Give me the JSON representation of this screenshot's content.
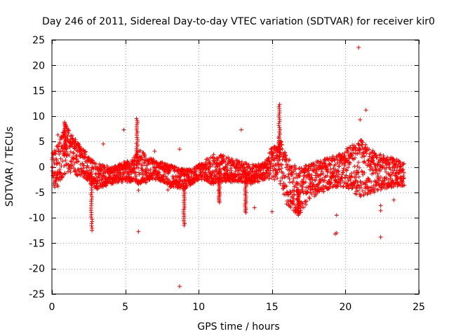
{
  "chart_data": {
    "type": "scatter",
    "title": "Day 246 of 2011, Sidereal Day-to-day VTEC variation (SDTVAR) for receiver kir0",
    "xlabel": "GPS time / hours",
    "ylabel": "SDTVAR / TECUs",
    "xlim": [
      0,
      25
    ],
    "ylim": [
      -25,
      25
    ],
    "xticks": [
      0,
      5,
      10,
      15,
      20,
      25
    ],
    "xtick_labels": [
      "0",
      "5",
      "10",
      "15",
      "20",
      "25"
    ],
    "yticks": [
      25,
      20,
      15,
      10,
      5,
      0,
      -5,
      -10,
      -15,
      -20,
      -25
    ],
    "ytick_labels": [
      "25",
      "20",
      "15",
      "10",
      "5",
      "0",
      "-5",
      "-10",
      "-15",
      "-20",
      "-25"
    ],
    "grid": true,
    "marker": "plus",
    "color": "#ff0000",
    "series": [
      {
        "name": "SDTVAR",
        "envelope": {
          "x": [
            0.0,
            0.3,
            0.6,
            0.9,
            1.2,
            1.6,
            2.0,
            2.5,
            3.0,
            3.5,
            4.0,
            4.5,
            5.0,
            5.5,
            6.0,
            6.5,
            7.0,
            7.5,
            8.0,
            8.5,
            9.0,
            9.5,
            10.0,
            10.5,
            11.0,
            11.5,
            12.0,
            12.5,
            13.0,
            13.5,
            14.0,
            14.5,
            15.0,
            15.5,
            16.0,
            16.5,
            17.0,
            17.5,
            18.0,
            18.5,
            19.0,
            19.5,
            20.0,
            20.5,
            21.0,
            21.5,
            22.0,
            22.5,
            23.0,
            23.5,
            24.0
          ],
          "high": [
            2.5,
            4.0,
            6.0,
            8.5,
            7.0,
            5.5,
            4.5,
            2.0,
            1.0,
            0.5,
            0.0,
            0.5,
            1.0,
            1.5,
            4.0,
            2.0,
            1.5,
            1.0,
            0.5,
            0.0,
            -0.5,
            -0.5,
            0.5,
            1.5,
            2.5,
            2.5,
            2.0,
            1.5,
            1.0,
            0.5,
            0.5,
            1.0,
            4.0,
            6.0,
            2.0,
            0.5,
            0.0,
            0.5,
            1.0,
            1.5,
            2.0,
            2.5,
            3.5,
            4.5,
            5.5,
            4.0,
            3.0,
            2.5,
            2.0,
            1.5,
            1.0
          ],
          "low": [
            -3.5,
            -4.5,
            -3.0,
            -1.5,
            -1.0,
            -1.5,
            -2.0,
            -3.0,
            -4.5,
            -4.0,
            -3.5,
            -3.0,
            -3.0,
            -3.0,
            -3.5,
            -3.0,
            -2.5,
            -3.0,
            -4.0,
            -4.0,
            -4.5,
            -3.5,
            -2.5,
            -3.0,
            -3.5,
            -3.0,
            -3.0,
            -3.0,
            -3.0,
            -3.5,
            -3.0,
            -2.5,
            -2.5,
            -3.0,
            -7.5,
            -9.0,
            -9.0,
            -7.0,
            -5.5,
            -5.0,
            -4.0,
            -4.0,
            -4.0,
            -5.0,
            -6.0,
            -5.5,
            -5.0,
            -4.5,
            -4.0,
            -4.0,
            -4.0
          ]
        },
        "spikes": [
          {
            "x": 0.9,
            "y": 8.8
          },
          {
            "x": 2.7,
            "y": -12.5
          },
          {
            "x": 5.8,
            "y": 9.5
          },
          {
            "x": 9.0,
            "y": -11.5
          },
          {
            "x": 11.4,
            "y": -7.0
          },
          {
            "x": 13.2,
            "y": -9.0
          },
          {
            "x": 15.5,
            "y": 12.3
          },
          {
            "x": 16.8,
            "y": -9.5
          }
        ],
        "outliers": [
          {
            "x": 20.9,
            "y": 23.5
          },
          {
            "x": 21.4,
            "y": 11.2
          },
          {
            "x": 21.0,
            "y": 9.3
          },
          {
            "x": 8.7,
            "y": -23.5
          },
          {
            "x": 22.4,
            "y": -13.8
          },
          {
            "x": 19.3,
            "y": -13.2
          },
          {
            "x": 19.4,
            "y": -13.0
          },
          {
            "x": 5.9,
            "y": -12.7
          },
          {
            "x": 19.4,
            "y": -9.5
          },
          {
            "x": 15.0,
            "y": -8.8
          },
          {
            "x": 22.4,
            "y": -8.6
          },
          {
            "x": 22.4,
            "y": -7.6
          },
          {
            "x": 12.9,
            "y": 7.3
          },
          {
            "x": 4.9,
            "y": 7.3
          },
          {
            "x": 3.5,
            "y": 4.5
          },
          {
            "x": 7.0,
            "y": 3.1
          },
          {
            "x": 0.4,
            "y": 6.3
          },
          {
            "x": 8.7,
            "y": 3.5
          },
          {
            "x": 7.9,
            "y": -4.5
          },
          {
            "x": 5.9,
            "y": -4.6
          },
          {
            "x": 13.8,
            "y": -8.0
          },
          {
            "x": 23.3,
            "y": -6.5
          }
        ]
      }
    ]
  }
}
